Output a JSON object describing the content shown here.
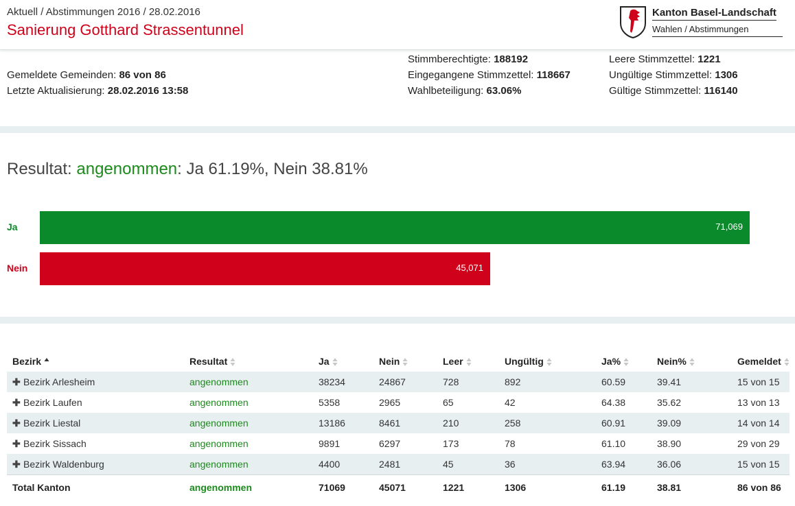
{
  "header": {
    "breadcrumb": [
      "Aktuell",
      "Abstimmungen 2016",
      "28.02.2016"
    ],
    "sep": "/",
    "title": "Sanierung Gotthard Strassentunnel",
    "logo_name": "Kanton Basel-Landschaft",
    "logo_sub": "Wahlen / Abstimmungen"
  },
  "stats": {
    "gemeinden_label": "Gemeldete Gemeinden:",
    "gemeinden_value": "86 von 86",
    "update_label": "Letzte Aktualisierung:",
    "update_value": "28.02.2016 13:58",
    "berechtigte_label": "Stimmberechtigte:",
    "berechtigte_value": "188192",
    "eingegangen_label": "Eingegangene Stimmzettel:",
    "eingegangen_value": "118667",
    "beteiligung_label": "Wahlbeteiligung:",
    "beteiligung_value": "63.06%",
    "leer_label": "Leere Stimmzettel:",
    "leer_value": "1221",
    "ungueltig_label": "Ungültige Stimmzettel:",
    "ungueltig_value": "1306",
    "gueltig_label": "Gültige Stimmzettel:",
    "gueltig_value": "116140"
  },
  "result": {
    "prefix": "Resultat:",
    "outcome": "angenommen",
    "detail": ": Ja 61.19%, Nein 38.81%"
  },
  "chart_data": {
    "type": "bar",
    "categories": [
      "Ja",
      "Nein"
    ],
    "values": [
      71069,
      45071
    ],
    "value_labels": [
      "71,069",
      "45,071"
    ],
    "colors": [
      "#0a8a2a",
      "#d0021b"
    ]
  },
  "table": {
    "headers": [
      "Bezirk",
      "Resultat",
      "Ja",
      "Nein",
      "Leer",
      "Ungültig",
      "Ja%",
      "Nein%",
      "Gemeldet"
    ],
    "rows": [
      [
        "Bezirk Arlesheim",
        "angenommen",
        "38234",
        "24867",
        "728",
        "892",
        "60.59",
        "39.41",
        "15 von 15"
      ],
      [
        "Bezirk Laufen",
        "angenommen",
        "5358",
        "2965",
        "65",
        "42",
        "64.38",
        "35.62",
        "13 von 13"
      ],
      [
        "Bezirk Liestal",
        "angenommen",
        "13186",
        "8461",
        "210",
        "258",
        "60.91",
        "39.09",
        "14 von 14"
      ],
      [
        "Bezirk Sissach",
        "angenommen",
        "9891",
        "6297",
        "173",
        "78",
        "61.10",
        "38.90",
        "29 von 29"
      ],
      [
        "Bezirk Waldenburg",
        "angenommen",
        "4400",
        "2481",
        "45",
        "36",
        "63.94",
        "36.06",
        "15 von 15"
      ]
    ],
    "total": [
      "Total Kanton",
      "angenommen",
      "71069",
      "45071",
      "1221",
      "1306",
      "61.19",
      "38.81",
      "86 von 86"
    ]
  }
}
